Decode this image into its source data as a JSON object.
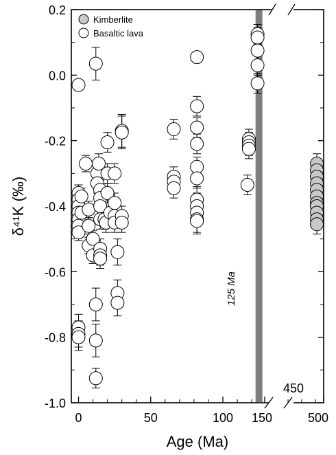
{
  "chart_data": {
    "type": "scatter",
    "xlabel": "Age (Ma)",
    "ylabel": "δ⁴¹K (‰)",
    "ylim": [
      -1.0,
      0.2
    ],
    "xlim_main": [
      -5,
      128
    ],
    "xlim_break": [
      140,
      500
    ],
    "x_ticks_main": [
      "0",
      "50",
      "100"
    ],
    "x_ticks_break": [
      "150",
      "500"
    ],
    "y_ticks": [
      "0.2",
      "0.0",
      "-0.2",
      "-0.4",
      "-0.6",
      "-0.8",
      "-1.0"
    ],
    "break_annotation": "450",
    "reference_line": {
      "x": 125,
      "label": "125 Ma",
      "color": "#7f7f7f"
    },
    "legend_position": "top-left",
    "series": [
      {
        "name": "Kimberlite",
        "fill": "#c8c8c8",
        "x": 450,
        "y": [
          -0.27,
          -0.29,
          -0.31,
          -0.33,
          -0.35,
          -0.37,
          -0.39,
          -0.4,
          -0.42,
          -0.44,
          -0.455
        ],
        "err": 0.03
      },
      {
        "name": "Basaltic lava",
        "fill": "#ffffff",
        "points": [
          [
            0,
            -0.03,
            0.0
          ],
          [
            12,
            0.035,
            0.05
          ],
          [
            0,
            -0.36,
            0.025
          ],
          [
            0,
            -0.38,
            0.025
          ],
          [
            0,
            -0.4,
            0.025
          ],
          [
            0,
            -0.42,
            0.025
          ],
          [
            0,
            -0.44,
            0.025
          ],
          [
            0,
            -0.46,
            0.025
          ],
          [
            0,
            -0.48,
            0.025
          ],
          [
            0,
            -0.77,
            0.04
          ],
          [
            0,
            -0.79,
            0.04
          ],
          [
            0,
            -0.8,
            0.04
          ],
          [
            2,
            -0.37,
            0.025
          ],
          [
            2,
            -0.42,
            0.025
          ],
          [
            5,
            -0.27,
            0.025
          ],
          [
            7,
            -0.41,
            0.025
          ],
          [
            7,
            -0.46,
            0.025
          ],
          [
            7,
            -0.52,
            0.025
          ],
          [
            10,
            -0.5,
            0.025
          ],
          [
            10,
            -0.55,
            0.025
          ],
          [
            12,
            -0.7,
            0.05
          ],
          [
            12,
            -0.81,
            0.05
          ],
          [
            12,
            -0.925,
            0.03
          ],
          [
            13,
            -0.3,
            0.03
          ],
          [
            13,
            -0.33,
            0.03
          ],
          [
            14,
            -0.27,
            0.03
          ],
          [
            15,
            -0.35,
            0.03
          ],
          [
            15,
            -0.375,
            0.03
          ],
          [
            15,
            -0.4,
            0.03
          ],
          [
            15,
            -0.44,
            0.03
          ],
          [
            15,
            -0.53,
            0.03
          ],
          [
            15,
            -0.55,
            0.03
          ],
          [
            15,
            -0.56,
            0.03
          ],
          [
            18,
            -0.44,
            0.03
          ],
          [
            19,
            -0.45,
            0.03
          ],
          [
            20,
            -0.205,
            0.03
          ],
          [
            20,
            -0.3,
            0.03
          ],
          [
            20,
            -0.36,
            0.03
          ],
          [
            22,
            -0.42,
            0.03
          ],
          [
            25,
            -0.3,
            0.03
          ],
          [
            25,
            -0.39,
            0.03
          ],
          [
            25,
            -0.43,
            0.03
          ],
          [
            25,
            -0.45,
            0.03
          ],
          [
            27,
            -0.54,
            0.04
          ],
          [
            27,
            -0.665,
            0.04
          ],
          [
            27,
            -0.695,
            0.04
          ],
          [
            30,
            -0.17,
            0.05
          ],
          [
            30,
            -0.175,
            0.05
          ],
          [
            30,
            -0.43,
            0.03
          ],
          [
            30,
            -0.45,
            0.03
          ],
          [
            66,
            -0.165,
            0.03
          ],
          [
            66,
            -0.31,
            0.03
          ],
          [
            66,
            -0.325,
            0.03
          ],
          [
            66,
            -0.345,
            0.03
          ],
          [
            82,
            0.055,
            0.0
          ],
          [
            82,
            -0.095,
            0.03
          ],
          [
            82,
            -0.16,
            0.03
          ],
          [
            82,
            -0.21,
            0.03
          ],
          [
            82,
            -0.28,
            0.03
          ],
          [
            82,
            -0.315,
            0.03
          ],
          [
            82,
            -0.38,
            0.04
          ],
          [
            82,
            -0.4,
            0.04
          ],
          [
            82,
            -0.42,
            0.04
          ],
          [
            82,
            -0.44,
            0.04
          ],
          [
            82,
            -0.445,
            0.04
          ],
          [
            118,
            -0.195,
            0.03
          ],
          [
            118,
            -0.205,
            0.03
          ],
          [
            118,
            -0.215,
            0.03
          ],
          [
            118,
            -0.225,
            0.03
          ],
          [
            117,
            -0.335,
            0.03
          ],
          [
            124,
            0.125,
            0.03
          ],
          [
            124,
            0.115,
            0.03
          ],
          [
            124,
            0.075,
            0.03
          ],
          [
            124,
            0.03,
            0.03
          ],
          [
            124,
            -0.025,
            0.03
          ]
        ]
      }
    ]
  }
}
